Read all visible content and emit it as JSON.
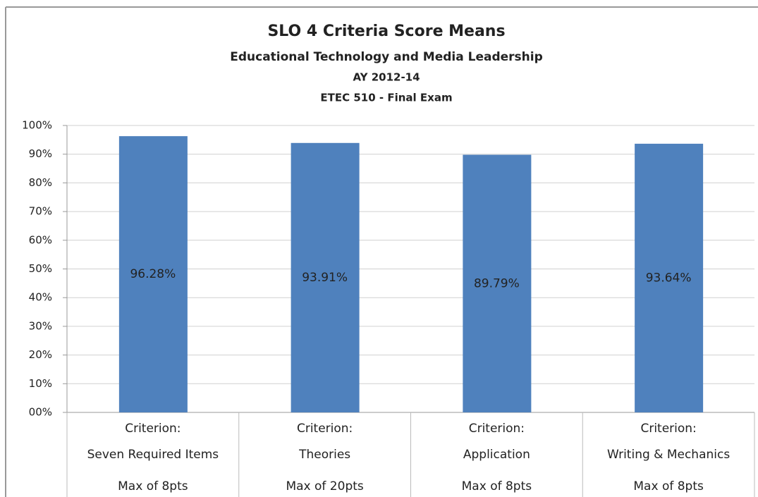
{
  "chart_data": {
    "type": "bar",
    "title": "SLO 4 Criteria Score Means",
    "subtitles": [
      "Educational Technology and Media Leadership",
      "AY 2012-14",
      "ETEC 510 - Final Exam"
    ],
    "categories": [
      [
        "Criterion:",
        "Seven Required Items"
      ],
      [
        "Criterion:",
        "Theories"
      ],
      [
        "Criterion:",
        "Application"
      ],
      [
        "Criterion:",
        "Writing & Mechanics"
      ]
    ],
    "category_max": [
      "Max of 8pts",
      "Max of 20pts",
      "Max of 8pts",
      "Max of 8pts"
    ],
    "values": [
      96.28,
      93.91,
      89.79,
      93.64
    ],
    "value_labels": [
      "96.28%",
      "93.91%",
      "89.79%",
      "93.64%"
    ],
    "color": "#4f81bd",
    "ylim": [
      0,
      100
    ],
    "yticks": [
      {
        "value": 0,
        "label": "00%"
      },
      {
        "value": 10,
        "label": "10%"
      },
      {
        "value": 20,
        "label": "20%"
      },
      {
        "value": 30,
        "label": "30%"
      },
      {
        "value": 40,
        "label": "40%"
      },
      {
        "value": 50,
        "label": "50%"
      },
      {
        "value": 60,
        "label": "60%"
      },
      {
        "value": 70,
        "label": "70%"
      },
      {
        "value": 80,
        "label": "80%"
      },
      {
        "value": 90,
        "label": "90%"
      },
      {
        "value": 100,
        "label": "100%"
      }
    ],
    "grid": true
  }
}
